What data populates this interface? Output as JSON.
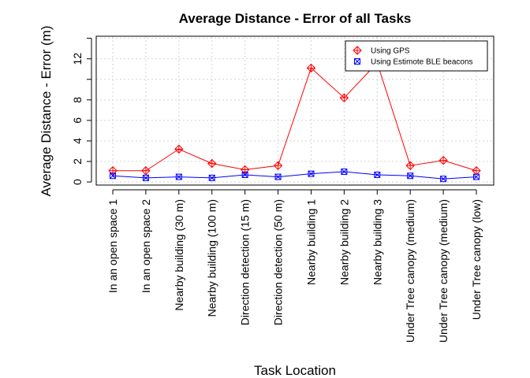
{
  "chart_data": {
    "type": "line",
    "title": "Average Distance - Error of all Tasks",
    "xlabel": "Task Location",
    "ylabel": "Average Distance - Error (m)",
    "categories": [
      "In an open space 1",
      "In an open space 2",
      "Nearby building (30 m)",
      "Nearby building (100 m)",
      "Direction detection (15 m)",
      "Direction detection (50 m)",
      "Nearby building 1",
      "Nearby building 2",
      "Nearby building 3",
      "Under Tree canopy (medium)",
      "Under Tree canopy (medium)",
      "Under Tree canopy (low)"
    ],
    "yticks": [
      0,
      2,
      4,
      6,
      8,
      12
    ],
    "ylim": [
      -0.3,
      14.2
    ],
    "grid": true,
    "legend_position": "top-right",
    "series": [
      {
        "name": "Using GPS",
        "color": "#ff0000",
        "marker": "diamond-plus",
        "values": [
          1.1,
          1.1,
          3.2,
          1.8,
          1.2,
          1.6,
          11.1,
          8.2,
          11.6,
          1.6,
          2.1,
          1.1
        ]
      },
      {
        "name": "Using Estimote BLE beacons",
        "color": "#0000ff",
        "marker": "square-x",
        "values": [
          0.6,
          0.4,
          0.5,
          0.4,
          0.7,
          0.5,
          0.8,
          1.0,
          0.7,
          0.6,
          0.3,
          0.5
        ]
      }
    ]
  }
}
